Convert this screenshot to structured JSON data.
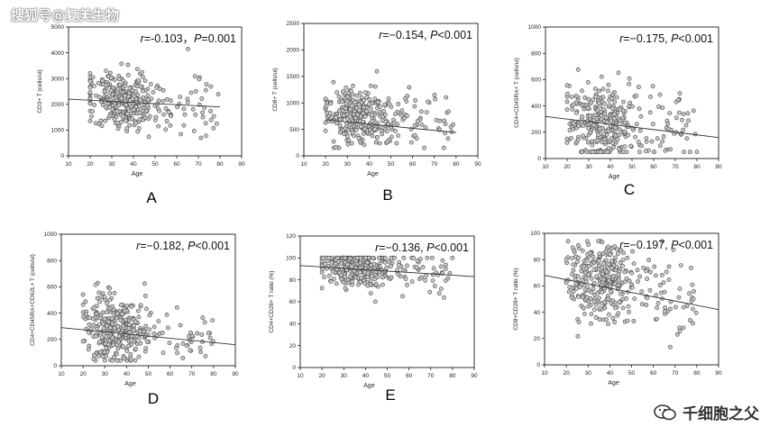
{
  "watermark_top": "搜狐号@复美生物",
  "watermark_bottom": "千细胞之父",
  "panel_letter_color": "#000000",
  "point_fill": "#c8c8c8",
  "point_stroke": "#444444",
  "chart_data": [
    {
      "type": "scatter",
      "letter": "A",
      "ylabel": "CD3+ T (cells/ul)",
      "xlabel": "Age",
      "xlim": [
        10,
        90
      ],
      "ylim": [
        0,
        5000
      ],
      "xticks": [
        10,
        20,
        30,
        40,
        50,
        60,
        70,
        80,
        90
      ],
      "yticks": [
        0,
        1000,
        2000,
        3000,
        4000,
        5000
      ],
      "annotation": {
        "r": "r=-0.103，",
        "p": "P=0.001"
      },
      "trend": [
        [
          10,
          2200
        ],
        [
          80,
          1900
        ]
      ],
      "cloud": {
        "count": 360,
        "y_mean": 2100,
        "y_sd": 560,
        "y_min": 700,
        "y_max": 4600
      }
    },
    {
      "type": "scatter",
      "letter": "B",
      "ylabel": "CD8+ T (cells/ul)",
      "xlabel": "Age",
      "xlim": [
        10,
        90
      ],
      "ylim": [
        0,
        2500
      ],
      "xticks": [
        10,
        20,
        30,
        40,
        50,
        60,
        70,
        80,
        90
      ],
      "yticks": [
        0,
        500,
        1000,
        1500,
        2000,
        2500
      ],
      "annotation": {
        "r": "r=−0.154, ",
        "p": "P<0.001"
      },
      "trend": [
        [
          20,
          680
        ],
        [
          80,
          440
        ]
      ],
      "cloud": {
        "count": 360,
        "y_mean": 690,
        "y_sd": 250,
        "y_min": 150,
        "y_max": 2050
      }
    },
    {
      "type": "scatter",
      "letter": "C",
      "ylabel": "CD4+CD45RA+ T (cells/ul)",
      "xlabel": "Age",
      "xlim": [
        10,
        90
      ],
      "ylim": [
        0,
        1000
      ],
      "xticks": [
        10,
        20,
        30,
        40,
        50,
        60,
        70,
        80,
        90
      ],
      "yticks": [
        0,
        200,
        400,
        600,
        800,
        1000
      ],
      "annotation": {
        "r": "r=−0.175, ",
        "p": "P<0.001"
      },
      "trend": [
        [
          10,
          320
        ],
        [
          90,
          160
        ]
      ],
      "cloud": {
        "count": 360,
        "y_mean": 260,
        "y_sd": 140,
        "y_min": 50,
        "y_max": 900
      }
    },
    {
      "type": "scatter",
      "letter": "D",
      "ylabel": "CD4+CD45RA+CD62L+ T (cells/ul)",
      "xlabel": "Age",
      "xlim": [
        10,
        90
      ],
      "ylim": [
        0,
        1000
      ],
      "xticks": [
        10,
        20,
        30,
        40,
        50,
        60,
        70,
        80,
        90
      ],
      "yticks": [
        0,
        200,
        400,
        600,
        800,
        1000
      ],
      "annotation": {
        "r": "r=−0.182, ",
        "p": "P<0.001"
      },
      "trend": [
        [
          10,
          290
        ],
        [
          90,
          160
        ]
      ],
      "cloud": {
        "count": 360,
        "y_mean": 250,
        "y_sd": 130,
        "y_min": 40,
        "y_max": 870
      }
    },
    {
      "type": "scatter",
      "letter": "E",
      "ylabel": "CD4+CD28+ T ratio (%)",
      "xlabel": "Age",
      "xlim": [
        10,
        90
      ],
      "ylim": [
        0,
        120
      ],
      "xticks": [
        10,
        20,
        30,
        40,
        50,
        60,
        70,
        80,
        90
      ],
      "yticks": [
        0,
        20,
        40,
        60,
        80,
        100,
        120
      ],
      "annotation": {
        "r": "r=−0.136, ",
        "p": "P<0.001"
      },
      "trend": [
        [
          10,
          93
        ],
        [
          90,
          83
        ]
      ],
      "cloud": {
        "count": 360,
        "y_mean": 90,
        "y_sd": 9,
        "y_min": 28,
        "y_max": 100
      }
    },
    {
      "type": "scatter",
      "letter": "F",
      "show_letter": false,
      "ylabel": "CD8+CD28+ T ratio (%)",
      "xlabel": "Age",
      "xlim": [
        10,
        90
      ],
      "ylim": [
        0,
        100
      ],
      "xticks": [
        10,
        20,
        30,
        40,
        50,
        60,
        70,
        80,
        90
      ],
      "yticks": [
        0,
        20,
        40,
        60,
        80,
        100
      ],
      "annotation": {
        "r": "r=−0.197, ",
        "p": "P<0.001"
      },
      "trend": [
        [
          10,
          68
        ],
        [
          90,
          42
        ]
      ],
      "cloud": {
        "count": 360,
        "y_mean": 60,
        "y_sd": 15,
        "y_min": 12,
        "y_max": 94
      }
    }
  ]
}
